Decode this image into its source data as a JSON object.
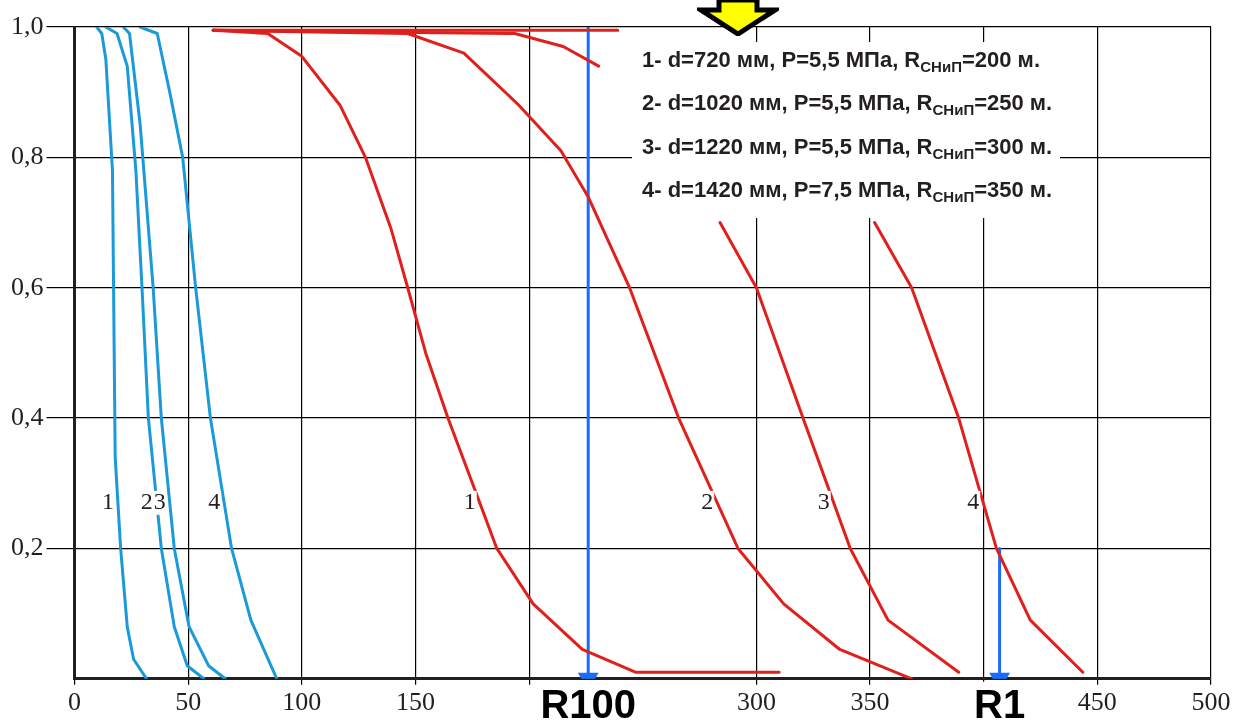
{
  "chart_data": {
    "type": "line",
    "xlim": [
      0,
      500
    ],
    "ylim": [
      0,
      1
    ],
    "xticks": [
      0,
      50,
      100,
      150,
      {
        "value": 200,
        "label": null
      },
      300,
      350,
      {
        "value": 400,
        "label": null
      },
      450,
      500
    ],
    "yticks": [
      {
        "value": 0.2,
        "label": "0,2"
      },
      {
        "value": 0.4,
        "label": "0,4"
      },
      {
        "value": 0.6,
        "label": "0,6"
      },
      {
        "value": 0.8,
        "label": "0,8"
      },
      {
        "value": 1,
        "label": "1,0"
      }
    ],
    "grid": true,
    "legend": false,
    "series": [
      {
        "name": "1",
        "color": "#1b9ad9",
        "x": [
          9.8,
          12,
          13.8,
          16.7,
          17.3,
          17.9,
          20.3,
          23.2,
          26,
          31.7
        ],
        "values": [
          1,
          0.99,
          0.95,
          0.78,
          0.56,
          0.34,
          0.2,
          0.08,
          0.03,
          0
        ]
      },
      {
        "name": "2",
        "color": "#1b9ad9",
        "x": [
          13.8,
          18.7,
          23.2,
          27,
          29.7,
          32.5,
          38.2,
          43.9,
          49.6,
          56.9
        ],
        "values": [
          1,
          0.99,
          0.94,
          0.78,
          0.6,
          0.4,
          0.2,
          0.08,
          0.02,
          0
        ]
      },
      {
        "name": "3",
        "color": "#1b9ad9",
        "x": [
          21.5,
          24.2,
          28.9,
          34.6,
          38.2,
          43.9,
          50.4,
          59,
          66.3
        ],
        "values": [
          1,
          0.99,
          0.85,
          0.6,
          0.4,
          0.2,
          0.08,
          0.02,
          0
        ]
      },
      {
        "name": "4",
        "color": "#1b9ad9",
        "x": [
          28.9,
          36.4,
          41.9,
          47.6,
          53.3,
          59.8,
          69.1,
          77.6,
          89
        ],
        "values": [
          1,
          0.99,
          0.9,
          0.8,
          0.6,
          0.4,
          0.2,
          0.09,
          0
        ]
      },
      {
        "name": "1",
        "color": "#e0201c",
        "x": [
          61,
          85,
          100,
          116.8,
          128,
          139.3,
          146.6,
          154.5,
          164.3,
          174,
          185.8,
          201.8,
          223.4,
          247,
          310
        ],
        "values": [
          0.995,
          0.99,
          0.955,
          0.88,
          0.8,
          0.69,
          0.6,
          0.5,
          0.4,
          0.31,
          0.2,
          0.115,
          0.045,
          0.01,
          0.01
        ]
      },
      {
        "name": "2",
        "color": "#e0201c",
        "x": [
          61,
          146.6,
          171.3,
          195.5,
          214,
          225.9,
          244.2,
          265.8,
          291.9,
          312,
          336.7,
          368.3
        ],
        "values": [
          0.995,
          0.99,
          0.96,
          0.88,
          0.81,
          0.74,
          0.6,
          0.4,
          0.2,
          0.115,
          0.045,
          0
        ]
      },
      {
        "name": "3",
        "color": "#e0201c",
        "x": [
          61,
          193.7,
          215,
          230.6,
          250,
          284,
          300,
          320.5,
          341.3,
          357.9,
          389
        ],
        "values": [
          0.995,
          0.99,
          0.97,
          0.94,
          null,
          0.7,
          0.6,
          0.4,
          0.2,
          0.09,
          0.01
        ]
      },
      {
        "name": "4",
        "color": "#e0201c",
        "x": [
          61,
          239,
          300,
          352,
          368.3,
          389,
          405.6,
          420.5,
          443.6
        ],
        "values": [
          0.995,
          0.995,
          null,
          0.7,
          0.6,
          0.4,
          0.2,
          0.09,
          0.01
        ]
      },
      {
        "type": "line",
        "marker": "triangle",
        "color": "#1a6cff",
        "x": [
          226,
          226
        ],
        "values": [
          1,
          0
        ]
      },
      {
        "type": "line",
        "marker": "triangle",
        "color": "#1a6cff",
        "x": [
          407,
          407
        ],
        "values": [
          0.2,
          0
        ]
      }
    ],
    "annotations": [
      "1- d=720 мм, P=5,5 МПа, R$_{СНиП}$=200 м.",
      "2- d=1020 мм, P=5,5 МПа, R$_{СНиП}$=250 м.",
      "3- d=1220 мм, P=5,5 МПа, R$_{СНиП}$=300 м.",
      "4- d=1420 мм, P=7,5 МПа, R$_{СНиП}$=350 м.",
      {
        "text": "R100",
        "x": 226,
        "y": 0
      },
      {
        "text": "R1",
        "x": 407,
        "y": 0
      }
    ]
  }
}
